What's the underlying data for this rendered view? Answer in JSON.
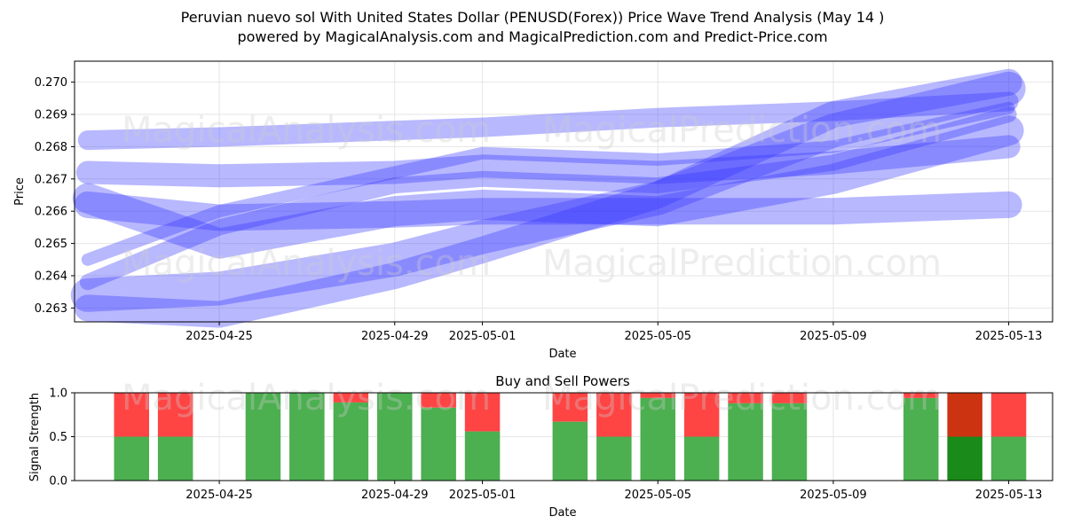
{
  "header": {
    "title_line1": "Peruvian nuevo sol With United States Dollar (PENUSD(Forex)) Price Wave Trend Analysis (May 14 )",
    "title_line2": "powered by MagicalAnalysis.com and MagicalPrediction.com and Predict-Price.com"
  },
  "watermarks": [
    "MagicalAnalysis.com",
    "MagicalPrediction.com"
  ],
  "colors": {
    "wave": "#3333ff",
    "buy": "#4caf50",
    "sell": "#ff4444",
    "buy_strong": "#1a8a1a",
    "sell_strong": "#cc3311"
  },
  "chart_data": [
    {
      "type": "line",
      "title": "",
      "xlabel": "Date",
      "ylabel": "Price",
      "x_ticks": [
        "2025-04-25",
        "2025-04-29",
        "2025-05-01",
        "2025-05-05",
        "2025-05-09",
        "2025-05-13"
      ],
      "x_tick_days": [
        3,
        7,
        9,
        13,
        17,
        21
      ],
      "y_ticks": [
        "0.263",
        "0.264",
        "0.265",
        "0.266",
        "0.267",
        "0.268",
        "0.269",
        "0.270"
      ],
      "ylim": [
        0.26257,
        0.27065
      ],
      "xlim_days": [
        -0.3,
        22.0
      ],
      "x": [
        0,
        3,
        7,
        9,
        13,
        17,
        21
      ],
      "series": [
        {
          "name": "wave1",
          "values": [
            0.2634,
            0.2636,
            0.2645,
            0.2652,
            0.2664,
            0.2685,
            0.2698
          ]
        },
        {
          "name": "wave2",
          "values": [
            0.263,
            0.2628,
            0.264,
            0.2648,
            0.2665,
            0.269,
            0.27
          ]
        },
        {
          "name": "wave3",
          "values": [
            0.2664,
            0.265,
            0.266,
            0.2662,
            0.266,
            0.267,
            0.2685
          ]
        },
        {
          "name": "wave4",
          "values": [
            0.2672,
            0.2671,
            0.2672,
            0.2674,
            0.2672,
            0.2675,
            0.268
          ]
        },
        {
          "name": "wave5",
          "values": [
            0.2682,
            0.2683,
            0.2685,
            0.2686,
            0.2689,
            0.2691,
            0.2694
          ]
        },
        {
          "name": "wave6",
          "values": [
            0.2638,
            0.2655,
            0.2668,
            0.267,
            0.2668,
            0.2675,
            0.269
          ]
        },
        {
          "name": "wave7",
          "values": [
            0.2645,
            0.266,
            0.2672,
            0.2678,
            0.2676,
            0.268,
            0.2692
          ]
        },
        {
          "name": "wave8",
          "values": [
            0.2662,
            0.2658,
            0.2659,
            0.266,
            0.266,
            0.266,
            0.2662
          ]
        }
      ]
    },
    {
      "type": "bar",
      "title": "Buy and Sell Powers",
      "xlabel": "Date",
      "ylabel": "Signal Strength",
      "x_ticks": [
        "2025-04-25",
        "2025-04-29",
        "2025-05-01",
        "2025-05-05",
        "2025-05-09",
        "2025-05-13"
      ],
      "x_tick_days": [
        3,
        7,
        9,
        13,
        17,
        21
      ],
      "y_ticks": [
        "0.0",
        "0.5",
        "1.0"
      ],
      "ylim": [
        0,
        1
      ],
      "xlim_days": [
        -0.3,
        22.0
      ],
      "days": [
        1,
        2,
        4,
        5,
        6,
        7,
        8,
        9,
        11,
        12,
        13,
        14,
        15,
        16,
        19,
        20,
        21
      ],
      "buy": [
        0.5,
        0.5,
        1.0,
        1.0,
        0.89,
        1.0,
        0.83,
        0.56,
        0.67,
        0.5,
        0.94,
        0.5,
        0.88,
        0.88,
        0.94,
        0.5,
        0.5
      ],
      "strong": [
        false,
        false,
        false,
        false,
        false,
        false,
        false,
        false,
        false,
        false,
        false,
        false,
        false,
        false,
        false,
        true,
        false
      ]
    }
  ]
}
